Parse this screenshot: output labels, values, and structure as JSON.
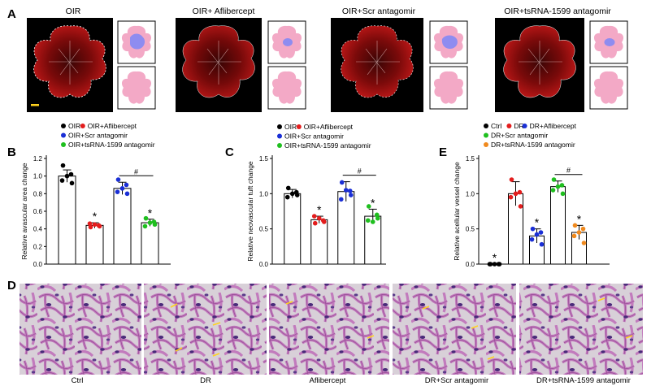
{
  "panel_labels": {
    "A": "A",
    "B": "B",
    "C": "C",
    "D": "D",
    "E": "E"
  },
  "row_a": {
    "titles": [
      "OIR",
      "OIR+ Aflibercept",
      "OIR+Scr antagomir",
      "OIR+tsRNA-1599 antagomir"
    ]
  },
  "colors": {
    "black": "#000000",
    "red": "#e31d1d",
    "blue": "#1a2fd6",
    "green": "#1fbf1f",
    "orange": "#f08a1e",
    "retina": "#7a0a0a",
    "schematic_pink": "#f3a9c6",
    "avascular_blue": "#8e8cf0"
  },
  "legend_b": {
    "items": [
      {
        "color_key": "black",
        "label": "OIR"
      },
      {
        "color_key": "red",
        "label": "OIR+Aflibercept"
      },
      {
        "color_key": "blue",
        "label": "OIR+Scr antagomir"
      },
      {
        "color_key": "green",
        "label": "OIR+tsRNA-1599 antagomir"
      }
    ]
  },
  "legend_c": {
    "items": [
      {
        "color_key": "black",
        "label": "OIR"
      },
      {
        "color_key": "red",
        "label": "OIR+Aflibercept"
      },
      {
        "color_key": "blue",
        "label": "OIR+Scr antagomir"
      },
      {
        "color_key": "green",
        "label": "OIR+tsRNA-1599 antagomir"
      }
    ]
  },
  "legend_e": {
    "items": [
      {
        "color_key": "black",
        "label": "Ctrl"
      },
      {
        "color_key": "red",
        "label": "DR"
      },
      {
        "color_key": "blue",
        "label": "DR+Aflibercept"
      },
      {
        "color_key": "green",
        "label": "DR+Scr antagomir"
      },
      {
        "color_key": "orange",
        "label": "DR+tsRNA-1599 antagomir"
      }
    ]
  },
  "row_d": {
    "captions": [
      "Ctrl",
      "DR",
      "Aflibercept",
      "DR+Scr antagomir",
      "DR+tsRNA-1599 antagomir"
    ]
  },
  "chart_data": [
    {
      "panel": "B",
      "type": "bar",
      "ylabel": "Relative avascular area change",
      "categories": [
        "OIR",
        "OIR+Aflibercept",
        "OIR+Scr antagomir",
        "OIR+tsRNA-1599 antagomir"
      ],
      "values": [
        1.0,
        0.44,
        0.86,
        0.47
      ],
      "errors": [
        0.07,
        0.03,
        0.07,
        0.04
      ],
      "points": [
        [
          1.12,
          1.02,
          0.95,
          0.92,
          1.0
        ],
        [
          0.42,
          0.44,
          0.46,
          0.43,
          0.45
        ],
        [
          0.96,
          0.9,
          0.82,
          0.8,
          0.86
        ],
        [
          0.52,
          0.48,
          0.43,
          0.45,
          0.47
        ]
      ],
      "point_colors": [
        "black",
        "red",
        "blue",
        "green"
      ],
      "ylim": [
        0.0,
        1.2
      ],
      "yticks": [
        "0.0",
        "0.2",
        "0.4",
        "0.6",
        "0.8",
        "1.0",
        "1.2"
      ],
      "stars_on": [
        1,
        3
      ],
      "star_text": "*",
      "hash_between": [
        2,
        3
      ],
      "hash_text": "#"
    },
    {
      "panel": "C",
      "type": "bar",
      "ylabel": "Relative neovascular tuft change",
      "categories": [
        "OIR",
        "OIR+Aflibercept",
        "OIR+Scr antagomir",
        "OIR+tsRNA-1599 antagomir"
      ],
      "values": [
        1.0,
        0.63,
        1.03,
        0.68
      ],
      "errors": [
        0.06,
        0.05,
        0.14,
        0.1
      ],
      "points": [
        [
          1.08,
          1.02,
          0.95,
          0.98,
          1.0
        ],
        [
          0.58,
          0.62,
          0.68,
          0.6,
          0.65
        ],
        [
          1.16,
          1.04,
          0.92,
          0.98,
          1.05
        ],
        [
          0.82,
          0.7,
          0.62,
          0.65,
          0.6
        ]
      ],
      "point_colors": [
        "black",
        "red",
        "blue",
        "green"
      ],
      "ylim": [
        0.0,
        1.5
      ],
      "yticks": [
        "0.0",
        "0.5",
        "1.0",
        "1.5"
      ],
      "stars_on": [
        1,
        3
      ],
      "star_text": "*",
      "hash_between": [
        2,
        3
      ],
      "hash_text": "#"
    },
    {
      "panel": "E",
      "type": "bar",
      "ylabel": "Relative acellular vessel change",
      "categories": [
        "Ctrl",
        "DR",
        "DR+Aflibercept",
        "DR+Scr antagomir",
        "DR+tsRNA-1599 antagomir"
      ],
      "values": [
        0.0,
        1.0,
        0.4,
        1.1,
        0.45
      ],
      "errors": [
        0.0,
        0.17,
        0.1,
        0.08,
        0.1
      ],
      "points": [
        [
          0.0,
          0.0,
          0.0,
          0.0,
          0.0
        ],
        [
          1.2,
          1.02,
          0.95,
          0.82,
          1.0
        ],
        [
          0.5,
          0.45,
          0.35,
          0.28,
          0.42
        ],
        [
          1.2,
          1.12,
          1.05,
          1.0,
          1.1
        ],
        [
          0.55,
          0.5,
          0.4,
          0.3,
          0.45
        ]
      ],
      "point_colors": [
        "black",
        "red",
        "blue",
        "green",
        "orange"
      ],
      "ylim": [
        0.0,
        1.5
      ],
      "yticks": [
        "0.0",
        "0.5",
        "1.0",
        "1.5"
      ],
      "stars_on": [
        0,
        2,
        4
      ],
      "star_text": "*",
      "hash_between": [
        3,
        4
      ],
      "hash_text": "#"
    }
  ]
}
